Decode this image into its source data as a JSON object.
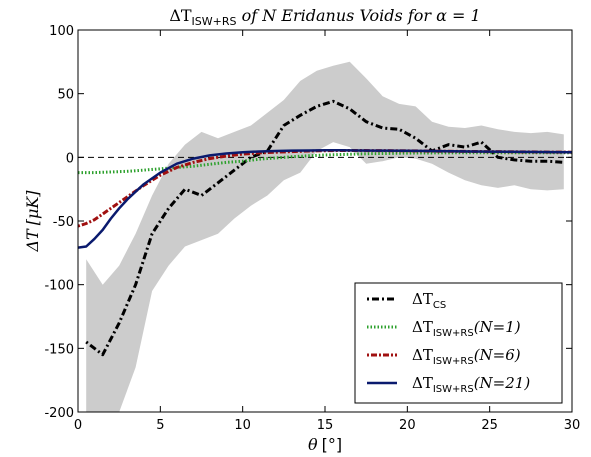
{
  "chart_data": {
    "type": "line",
    "title": "ΔT_ISW+RS of N Eridanus Voids for α = 1",
    "title_parts": {
      "delta_t": "ΔT",
      "sub": "ISW+RS",
      "rest": " of N Eridanus Voids for α = 1"
    },
    "xlabel": {
      "main": "θ",
      "unit": "[°]"
    },
    "ylabel": {
      "main": "ΔT",
      "unit": "[μK]"
    },
    "xlim": [
      0,
      30
    ],
    "ylim": [
      -200,
      100
    ],
    "x_ticks": [
      0,
      5,
      10,
      15,
      20,
      25,
      30
    ],
    "y_ticks": [
      -200,
      -150,
      -100,
      -50,
      0,
      50,
      100
    ],
    "reference_line": {
      "y": 0,
      "style": "dashed",
      "color": "#000000"
    },
    "band": {
      "color": "#cccccc",
      "x": [
        0.5,
        1.5,
        2.5,
        3.5,
        4.5,
        5.5,
        6.5,
        7.5,
        8.5,
        9.5,
        10.5,
        11.5,
        12.5,
        13.5,
        14.5,
        15.5,
        16.5,
        17.5,
        18.5,
        19.5,
        20.5,
        21.5,
        22.5,
        23.5,
        24.5,
        25.5,
        26.5,
        27.5,
        28.5,
        29.5
      ],
      "upper": [
        -80,
        -100,
        -85,
        -60,
        -30,
        -5,
        10,
        20,
        15,
        20,
        25,
        35,
        45,
        60,
        68,
        72,
        75,
        62,
        48,
        42,
        40,
        28,
        24,
        23,
        25,
        22,
        20,
        19,
        20,
        18
      ],
      "lower": [
        -200,
        -220,
        -200,
        -165,
        -105,
        -85,
        -70,
        -65,
        -60,
        -48,
        -38,
        -30,
        -18,
        -12,
        5,
        12,
        8,
        -5,
        -3,
        0,
        -1,
        -5,
        -12,
        -18,
        -22,
        -24,
        -22,
        -25,
        -26,
        -25
      ]
    },
    "series": [
      {
        "name": "ΔT_CS",
        "label_parts": {
          "main": "ΔT",
          "sub": "CS",
          "rest": ""
        },
        "color": "#000000",
        "dash": "2,3,7,3",
        "width": 3,
        "x": [
          0.5,
          1.5,
          2.5,
          3.5,
          4.5,
          5.5,
          6.5,
          7.5,
          8.5,
          9.5,
          10.5,
          11.5,
          12.5,
          13.5,
          14.5,
          15.5,
          16.5,
          17.5,
          18.5,
          19.5,
          20.5,
          21.5,
          22.5,
          23.5,
          24.5,
          25.5,
          26.5,
          27.5,
          28.5,
          29.5
        ],
        "y": [
          -145,
          -155,
          -130,
          -100,
          -60,
          -40,
          -25,
          -30,
          -20,
          -10,
          0,
          5,
          25,
          33,
          40,
          44,
          38,
          28,
          23,
          22,
          15,
          5,
          10,
          8,
          12,
          0,
          -2,
          -3,
          -3,
          -4
        ]
      },
      {
        "name": "ΔT_ISW+RS(N=1)",
        "label_parts": {
          "main": "ΔT",
          "sub": "ISW+RS",
          "rest": "(N=1)"
        },
        "color": "#2ca02c",
        "dash": "1.5,2",
        "width": 3,
        "x": [
          0,
          1,
          2,
          3,
          4,
          5,
          6,
          7,
          8,
          9,
          10,
          11,
          12,
          13,
          14,
          15,
          16,
          17,
          18,
          19,
          20,
          22,
          24,
          26,
          28,
          30
        ],
        "y": [
          -12,
          -12,
          -11.5,
          -11,
          -10,
          -9,
          -8,
          -7,
          -5.5,
          -4,
          -3,
          -1.5,
          -0.5,
          0.5,
          1.2,
          1.8,
          2.2,
          2.6,
          2.9,
          3.1,
          3.3,
          3.5,
          3.6,
          3.6,
          3.6,
          3.6
        ]
      },
      {
        "name": "ΔT_ISW+RS(N=6)",
        "label_parts": {
          "main": "ΔT",
          "sub": "ISW+RS",
          "rest": "(N=6)"
        },
        "color": "#a01010",
        "dash": "2,2,6,2",
        "width": 3,
        "x": [
          0,
          0.5,
          1,
          2,
          3,
          4,
          5,
          6,
          7,
          8,
          9,
          10,
          11,
          12,
          13,
          14,
          15,
          16,
          17,
          18,
          20,
          22,
          24,
          26,
          28,
          30
        ],
        "y": [
          -54,
          -52,
          -49,
          -40,
          -31,
          -22,
          -14,
          -8,
          -4,
          -1,
          1,
          2.5,
          3.5,
          4,
          4.5,
          5,
          5.2,
          5.4,
          5.4,
          5.3,
          5.1,
          4.8,
          4.6,
          4.4,
          4.2,
          4.0
        ]
      },
      {
        "name": "ΔT_ISW+RS(N=21)",
        "label_parts": {
          "main": "ΔT",
          "sub": "ISW+RS",
          "rest": "(N=21)"
        },
        "color": "#0a1a6e",
        "dash": "",
        "width": 2.5,
        "x": [
          0,
          0.5,
          1,
          1.5,
          2,
          2.5,
          3,
          3.5,
          4,
          5,
          6,
          7,
          8,
          9,
          10,
          11,
          12,
          13,
          14,
          15,
          16,
          17,
          18,
          20,
          22,
          24,
          26,
          28,
          30
        ],
        "y": [
          -71,
          -70,
          -64,
          -57,
          -48,
          -40,
          -33,
          -27,
          -21,
          -12,
          -5,
          -1,
          1.5,
          3,
          4,
          4.6,
          5,
          5.3,
          5.4,
          5.5,
          5.5,
          5.4,
          5.3,
          5.1,
          4.9,
          4.6,
          4.4,
          4.2,
          4.0
        ]
      }
    ],
    "legend": {
      "placement": "lower-right"
    },
    "grid": false
  }
}
